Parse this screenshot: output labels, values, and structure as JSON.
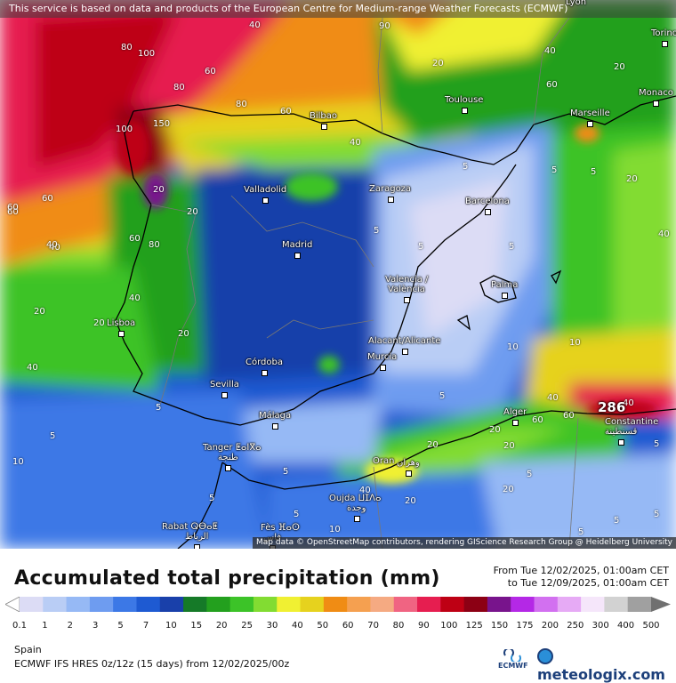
{
  "header": {
    "disclaimer": "This service is based on data and products of the European Centre for Medium-range Weather Forecasts (ECMWF)"
  },
  "attribution": "Map data © OpenStreetMap contributors, rendering GIScience Research Group @ Heidelberg University",
  "title": "Accumulated total precipitation (mm)",
  "period": {
    "from": "From Tue 12/02/2025, 01:00am CET",
    "to": "to Tue 12/09/2025, 01:00am CET"
  },
  "region": "Spain",
  "model": "ECMWF IFS HRES 0z/12z (15 days) from 12/02/2025/00z",
  "ecmwf_label": "ECMWF",
  "brand": "meteologix.com",
  "max_value": "286",
  "legend": {
    "ticks": [
      "0.1",
      "1",
      "2",
      "3",
      "5",
      "7",
      "10",
      "15",
      "20",
      "25",
      "30",
      "40",
      "50",
      "60",
      "70",
      "80",
      "90",
      "100",
      "125",
      "150",
      "175",
      "200",
      "250",
      "300",
      "400",
      "500"
    ],
    "colors": [
      "#dcdcf5",
      "#b9cdf5",
      "#96b9f5",
      "#6e9cf0",
      "#3c78e6",
      "#1e5ad2",
      "#1940aa",
      "#157a28",
      "#23a01e",
      "#3cc328",
      "#82dc32",
      "#f0f032",
      "#e6d21e",
      "#f08c14",
      "#f5a050",
      "#f5aa82",
      "#f06482",
      "#e61e50",
      "#be0014",
      "#8c0014",
      "#78148c",
      "#b428e6",
      "#d270f0",
      "#e6aaf5",
      "#f5e6fa",
      "#d2d2d2",
      "#a0a0a0"
    ]
  },
  "cities": [
    {
      "name": "Lyon"
    },
    {
      "name": "Torino"
    },
    {
      "name": "Monaco"
    },
    {
      "name": "Toulouse"
    },
    {
      "name": "Marseille"
    },
    {
      "name": "Bilbao"
    },
    {
      "name": "Valladolid"
    },
    {
      "name": "Zaragoza"
    },
    {
      "name": "Barcelona"
    },
    {
      "name": "Madrid"
    },
    {
      "name": "Valencia /"
    },
    {
      "name": "València"
    },
    {
      "name": "Palma"
    },
    {
      "name": "Lisboa"
    },
    {
      "name": "Alacant/Alicante"
    },
    {
      "name": "Murcia"
    },
    {
      "name": "Córdoba"
    },
    {
      "name": "Sevilla"
    },
    {
      "name": "Málaga"
    },
    {
      "name": "Alger"
    },
    {
      "name": "Constantine"
    },
    {
      "name": "قسنطينة"
    },
    {
      "name": "Tanger ⵟⴰⵏⴳⴰ"
    },
    {
      "name": "طنجة"
    },
    {
      "name": "Oran"
    },
    {
      "name": "وهران"
    },
    {
      "name": "Oujda ⵡⵊⴷⴰ"
    },
    {
      "name": "وجدة"
    },
    {
      "name": "Rabat ⵕⴱⴰⵟ"
    },
    {
      "name": "الرباط"
    },
    {
      "name": "Fès ⴼⴰⵙ"
    },
    {
      "name": "فاس"
    }
  ],
  "contour_labels": [
    "80",
    "60",
    "100",
    "40",
    "80",
    "60",
    "90",
    "80",
    "40",
    "60",
    "20",
    "80",
    "40",
    "60",
    "100",
    "150",
    "20",
    "20",
    "40",
    "60",
    "40",
    "20",
    "60",
    "40",
    "20",
    "5",
    "5",
    "5",
    "5",
    "5",
    "10",
    "5",
    "10",
    "20",
    "40",
    "60",
    "20",
    "40",
    "20",
    "5",
    "20",
    "20",
    "60",
    "40",
    "5",
    "20",
    "40",
    "5",
    "10",
    "5",
    "5",
    "5",
    "10",
    "20",
    "40",
    "20",
    "60",
    "5",
    "5",
    "5",
    "5",
    "5"
  ]
}
